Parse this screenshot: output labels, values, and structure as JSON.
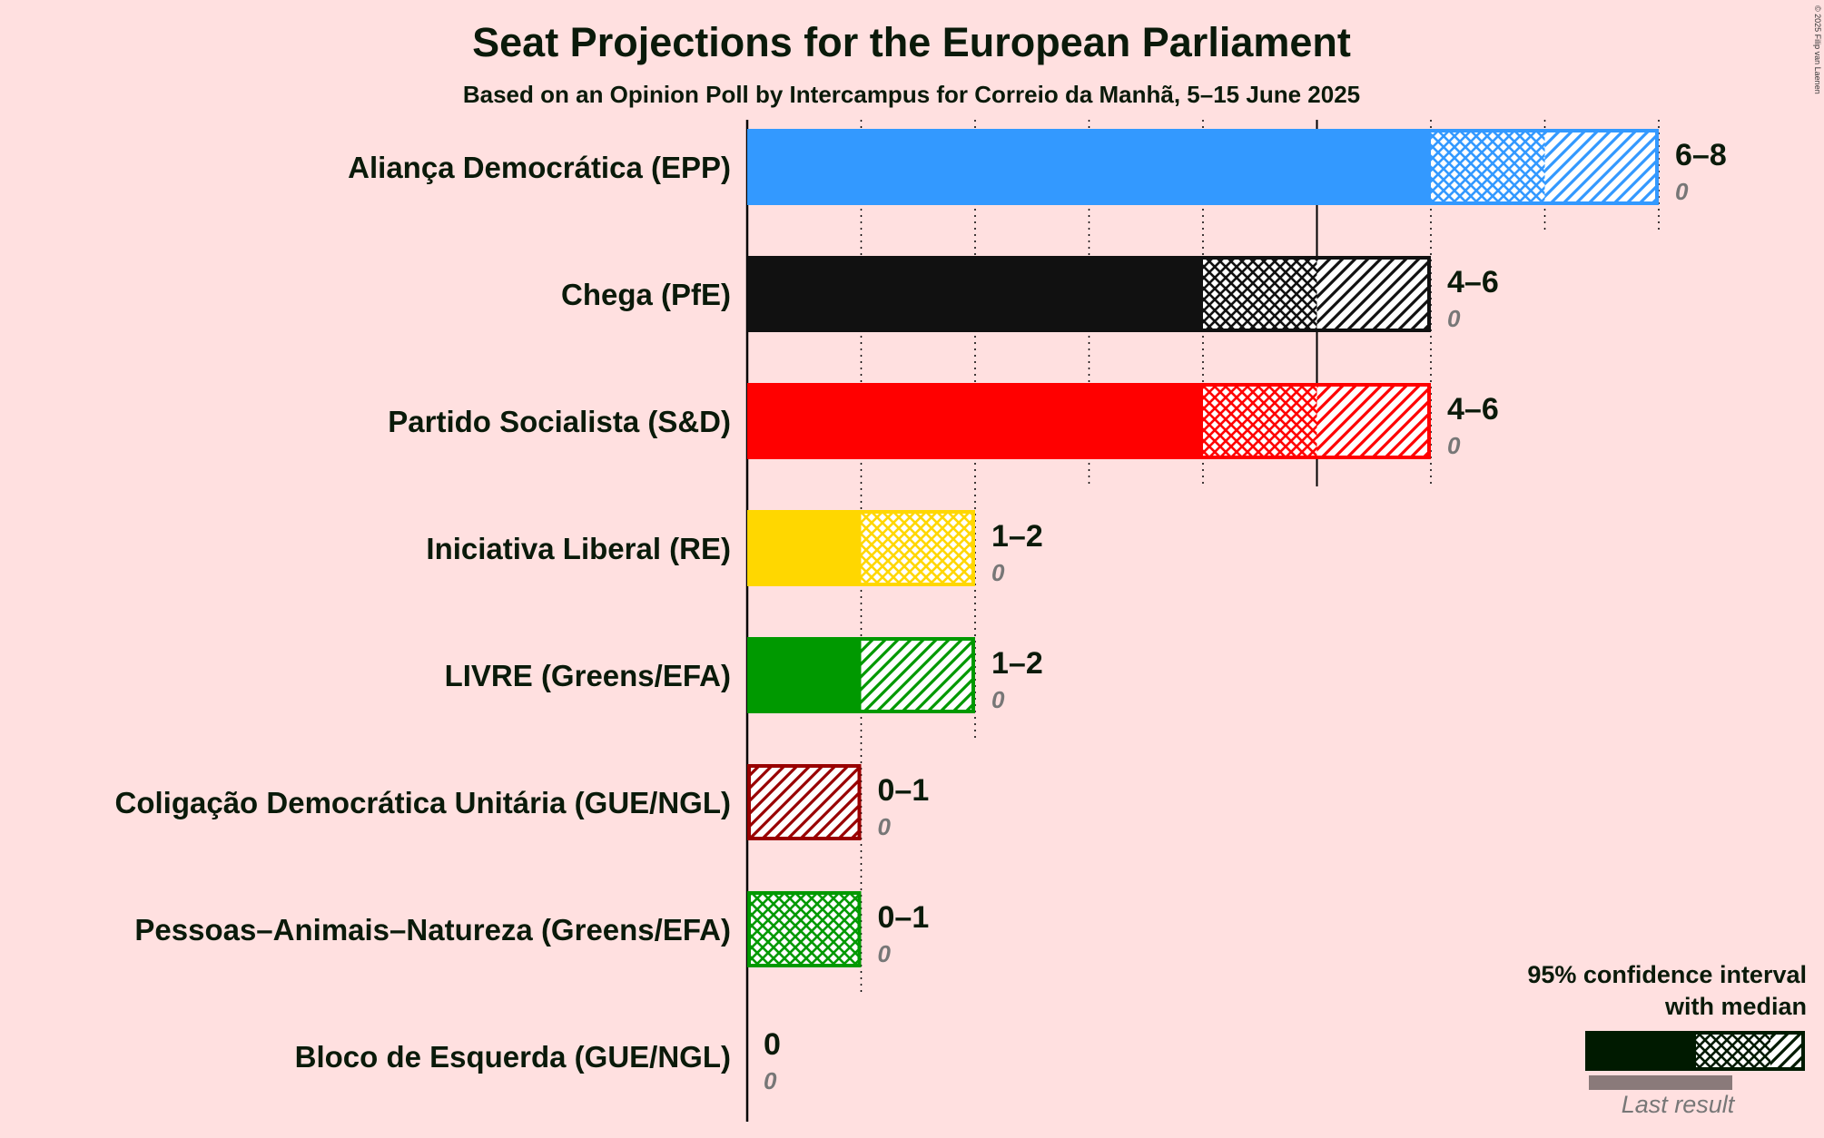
{
  "title": "Seat Projections for the European Parliament",
  "subtitle": "Based on an Opinion Poll by Intercampus for Correio da Manhã, 5–15 June 2025",
  "copyright": "© 2025 Filip van Laenen",
  "legend": {
    "line1": "95% confidence interval",
    "line2": "with median",
    "last_result": "Last result",
    "color": "#001A00"
  },
  "chart_data": {
    "type": "bar",
    "orientation": "horizontal",
    "title": "Seat Projections for the European Parliament",
    "subtitle": "Based on an Opinion Poll by Intercampus for Correio da Manhã, 5–15 June 2025",
    "xlim": [
      0,
      8
    ],
    "grid": true,
    "legend_position": "bottom-right",
    "parties": [
      {
        "name": "Aliança Democrática (EPP)",
        "low": 6,
        "median": 7,
        "high": 8,
        "last_result": 0,
        "range_label": "6–8",
        "last_label": "0",
        "color": "#3399FF"
      },
      {
        "name": "Chega (PfE)",
        "low": 4,
        "median": 5,
        "high": 6,
        "last_result": 0,
        "range_label": "4–6",
        "last_label": "0",
        "color": "#111111"
      },
      {
        "name": "Partido Socialista (S&D)",
        "low": 4,
        "median": 5,
        "high": 6,
        "last_result": 0,
        "range_label": "4–6",
        "last_label": "0",
        "color": "#FF0000"
      },
      {
        "name": "Iniciativa Liberal (RE)",
        "low": 1,
        "median": 2,
        "high": 2,
        "last_result": 0,
        "range_label": "1–2",
        "last_label": "0",
        "color": "#FFD700"
      },
      {
        "name": "LIVRE (Greens/EFA)",
        "low": 1,
        "median": 1,
        "high": 2,
        "last_result": 0,
        "range_label": "1–2",
        "last_label": "0",
        "color": "#009900"
      },
      {
        "name": "Coligação Democrática Unitária (GUE/NGL)",
        "low": 0,
        "median": 0,
        "high": 1,
        "last_result": 0,
        "range_label": "0–1",
        "last_label": "0",
        "color": "#990000"
      },
      {
        "name": "Pessoas–Animais–Natureza (Greens/EFA)",
        "low": 0,
        "median": 1,
        "high": 1,
        "last_result": 0,
        "range_label": "0–1",
        "last_label": "0",
        "color": "#009900"
      },
      {
        "name": "Bloco de Esquerda (GUE/NGL)",
        "low": 0,
        "median": 0,
        "high": 0,
        "last_result": 0,
        "range_label": "0",
        "last_label": "0",
        "color": "#CC0033"
      }
    ]
  }
}
